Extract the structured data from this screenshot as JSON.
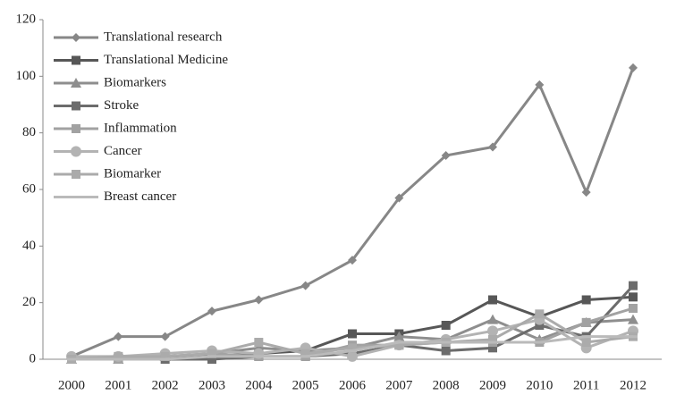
{
  "chart_data": {
    "type": "line",
    "categories": [
      "2000",
      "2001",
      "2002",
      "2003",
      "2004",
      "2005",
      "2006",
      "2007",
      "2008",
      "2009",
      "2010",
      "2011",
      "2012"
    ],
    "ylim": [
      0,
      120
    ],
    "yticks": [
      0,
      20,
      40,
      60,
      80,
      100,
      120
    ],
    "legend": "upper left",
    "series": [
      {
        "name": "Translational research",
        "color": "#878787",
        "marker": "diamond",
        "values": [
          1,
          8,
          8,
          17,
          21,
          26,
          35,
          57,
          72,
          75,
          97,
          59,
          103
        ]
      },
      {
        "name": "Translational Medicine",
        "color": "#575757",
        "marker": "square",
        "values": [
          0,
          0,
          1,
          1,
          2,
          3,
          9,
          9,
          12,
          21,
          15,
          21,
          22
        ]
      },
      {
        "name": "Biomarkers",
        "color": "#8e8e8e",
        "marker": "triangle",
        "values": [
          0,
          0,
          1,
          2,
          4,
          3,
          4,
          8,
          7,
          14,
          7,
          13,
          14
        ]
      },
      {
        "name": "Stroke",
        "color": "#6c6c6c",
        "marker": "square",
        "values": [
          0,
          0,
          0,
          0,
          1,
          1,
          2,
          5,
          3,
          4,
          12,
          8,
          26
        ]
      },
      {
        "name": "Inflammation",
        "color": "#a2a2a2",
        "marker": "square",
        "values": [
          0,
          0,
          1,
          2,
          1,
          1,
          5,
          5,
          6,
          6,
          6,
          13,
          18
        ]
      },
      {
        "name": "Cancer",
        "color": "#b3b3b3",
        "marker": "circle",
        "values": [
          1,
          1,
          2,
          3,
          2,
          4,
          1,
          5,
          7,
          10,
          14,
          4,
          10
        ]
      },
      {
        "name": "Biomarker",
        "color": "#ababab",
        "marker": "square",
        "values": [
          0,
          1,
          1,
          2,
          6,
          2,
          4,
          5,
          6,
          7,
          16,
          6,
          8
        ]
      },
      {
        "name": "Breast cancer",
        "color": "#bababa",
        "marker": "dash",
        "values": [
          0,
          0,
          0,
          1,
          1,
          1,
          3,
          6,
          6,
          6,
          6,
          8,
          8
        ]
      }
    ]
  }
}
